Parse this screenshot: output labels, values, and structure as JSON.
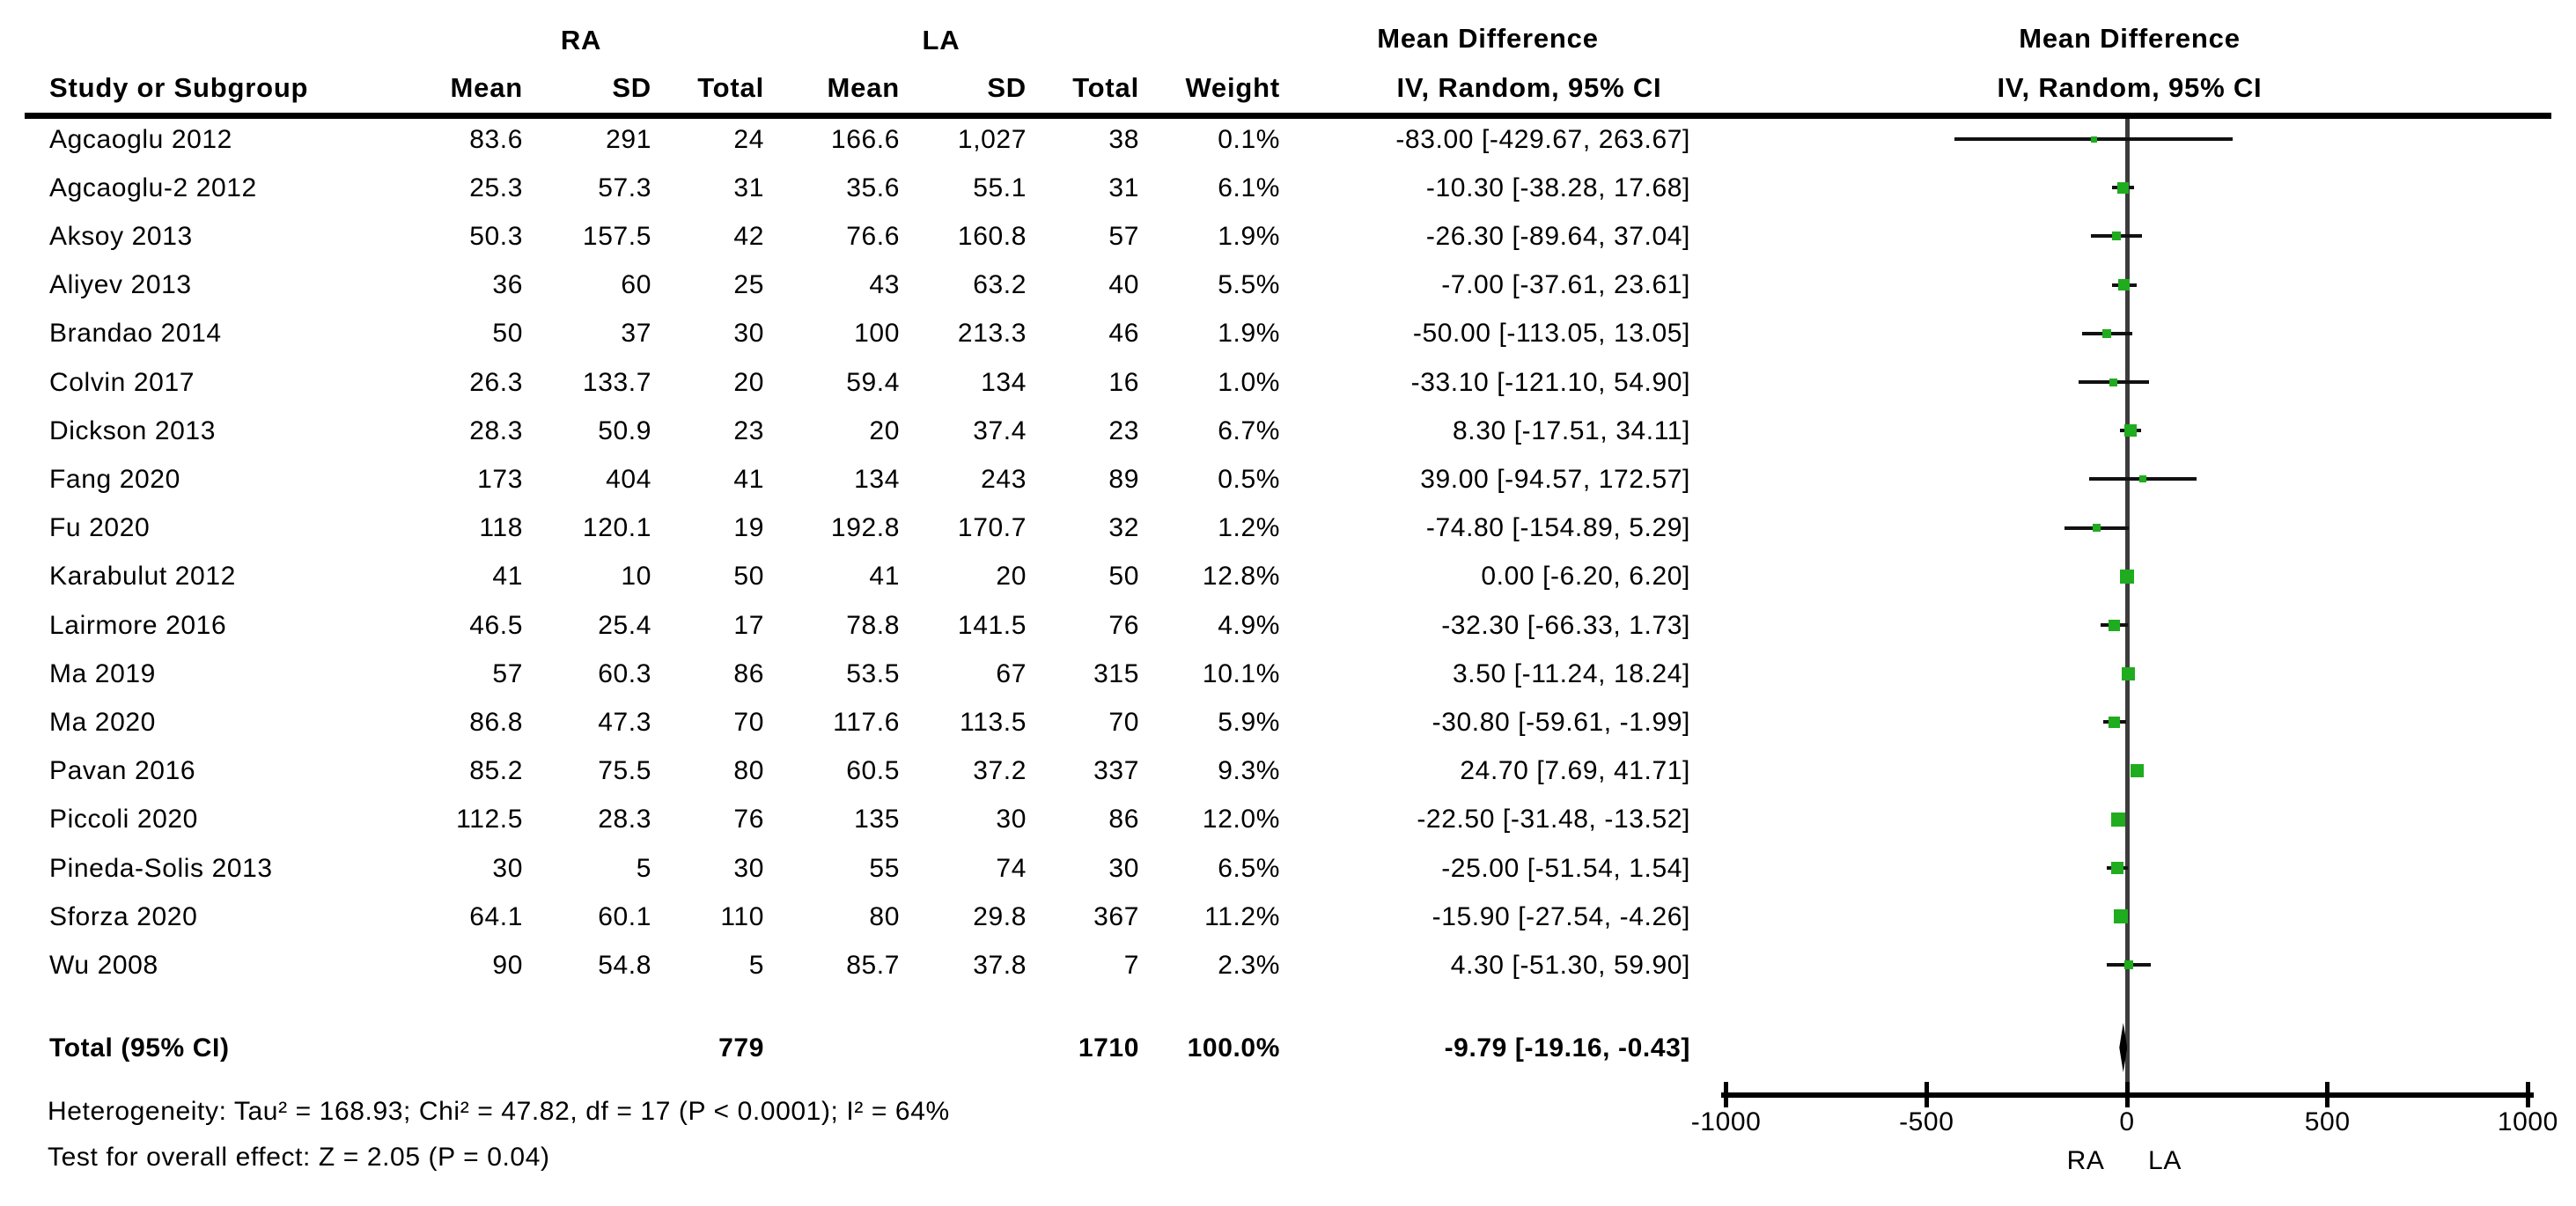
{
  "headers": {
    "study": "Study or Subgroup",
    "mean": "Mean",
    "sd": "SD",
    "total": "Total",
    "weight": "Weight",
    "md_line1": "Mean Difference",
    "md_line2": "IV, Random, 95% CI",
    "group_left": "RA",
    "group_right": "LA"
  },
  "colors": {
    "square_green": "#1fac1f",
    "ci_line": "#111111",
    "zero_line": "#3c3c3c",
    "diamond": "#000000",
    "text": "#000000",
    "background": "#ffffff"
  },
  "chart_data": {
    "type": "forest",
    "effect_measure": "Mean Difference",
    "method": "IV, Random, 95% CI",
    "group_labels": {
      "left": "RA",
      "right": "LA"
    },
    "axis": {
      "ticks": [
        -1000,
        -500,
        0,
        500,
        1000
      ],
      "xlim": [
        -1000,
        1000
      ],
      "below_labels": [
        "RA",
        "LA"
      ],
      "grid": false
    },
    "studies": [
      {
        "name": "Agcaoglu 2012",
        "ra_mean": "83.6",
        "ra_sd": "291",
        "ra_total": "24",
        "la_mean": "166.6",
        "la_sd": "1,027",
        "la_total": "38",
        "weight": "0.1%",
        "ci_text": "-83.00 [-429.67, 263.67]",
        "md": -83.0,
        "lo": -429.67,
        "hi": 263.67
      },
      {
        "name": "Agcaoglu-2 2012",
        "ra_mean": "25.3",
        "ra_sd": "57.3",
        "ra_total": "31",
        "la_mean": "35.6",
        "la_sd": "55.1",
        "la_total": "31",
        "weight": "6.1%",
        "ci_text": "-10.30 [-38.28, 17.68]",
        "md": -10.3,
        "lo": -38.28,
        "hi": 17.68
      },
      {
        "name": "Aksoy 2013",
        "ra_mean": "50.3",
        "ra_sd": "157.5",
        "ra_total": "42",
        "la_mean": "76.6",
        "la_sd": "160.8",
        "la_total": "57",
        "weight": "1.9%",
        "ci_text": "-26.30 [-89.64, 37.04]",
        "md": -26.3,
        "lo": -89.64,
        "hi": 37.04
      },
      {
        "name": "Aliyev 2013",
        "ra_mean": "36",
        "ra_sd": "60",
        "ra_total": "25",
        "la_mean": "43",
        "la_sd": "63.2",
        "la_total": "40",
        "weight": "5.5%",
        "ci_text": "-7.00 [-37.61, 23.61]",
        "md": -7.0,
        "lo": -37.61,
        "hi": 23.61
      },
      {
        "name": "Brandao 2014",
        "ra_mean": "50",
        "ra_sd": "37",
        "ra_total": "30",
        "la_mean": "100",
        "la_sd": "213.3",
        "la_total": "46",
        "weight": "1.9%",
        "ci_text": "-50.00 [-113.05, 13.05]",
        "md": -50.0,
        "lo": -113.05,
        "hi": 13.05
      },
      {
        "name": "Colvin 2017",
        "ra_mean": "26.3",
        "ra_sd": "133.7",
        "ra_total": "20",
        "la_mean": "59.4",
        "la_sd": "134",
        "la_total": "16",
        "weight": "1.0%",
        "ci_text": "-33.10 [-121.10, 54.90]",
        "md": -33.1,
        "lo": -121.1,
        "hi": 54.9
      },
      {
        "name": "Dickson 2013",
        "ra_mean": "28.3",
        "ra_sd": "50.9",
        "ra_total": "23",
        "la_mean": "20",
        "la_sd": "37.4",
        "la_total": "23",
        "weight": "6.7%",
        "ci_text": "8.30 [-17.51, 34.11]",
        "md": 8.3,
        "lo": -17.51,
        "hi": 34.11
      },
      {
        "name": "Fang 2020",
        "ra_mean": "173",
        "ra_sd": "404",
        "ra_total": "41",
        "la_mean": "134",
        "la_sd": "243",
        "la_total": "89",
        "weight": "0.5%",
        "ci_text": "39.00 [-94.57, 172.57]",
        "md": 39.0,
        "lo": -94.57,
        "hi": 172.57
      },
      {
        "name": "Fu 2020",
        "ra_mean": "118",
        "ra_sd": "120.1",
        "ra_total": "19",
        "la_mean": "192.8",
        "la_sd": "170.7",
        "la_total": "32",
        "weight": "1.2%",
        "ci_text": "-74.80 [-154.89, 5.29]",
        "md": -74.8,
        "lo": -154.89,
        "hi": 5.29
      },
      {
        "name": "Karabulut 2012",
        "ra_mean": "41",
        "ra_sd": "10",
        "ra_total": "50",
        "la_mean": "41",
        "la_sd": "20",
        "la_total": "50",
        "weight": "12.8%",
        "ci_text": "0.00 [-6.20, 6.20]",
        "md": 0.0,
        "lo": -6.2,
        "hi": 6.2
      },
      {
        "name": "Lairmore 2016",
        "ra_mean": "46.5",
        "ra_sd": "25.4",
        "ra_total": "17",
        "la_mean": "78.8",
        "la_sd": "141.5",
        "la_total": "76",
        "weight": "4.9%",
        "ci_text": "-32.30 [-66.33, 1.73]",
        "md": -32.3,
        "lo": -66.33,
        "hi": 1.73
      },
      {
        "name": "Ma 2019",
        "ra_mean": "57",
        "ra_sd": "60.3",
        "ra_total": "86",
        "la_mean": "53.5",
        "la_sd": "67",
        "la_total": "315",
        "weight": "10.1%",
        "ci_text": "3.50 [-11.24, 18.24]",
        "md": 3.5,
        "lo": -11.24,
        "hi": 18.24
      },
      {
        "name": "Ma 2020",
        "ra_mean": "86.8",
        "ra_sd": "47.3",
        "ra_total": "70",
        "la_mean": "117.6",
        "la_sd": "113.5",
        "la_total": "70",
        "weight": "5.9%",
        "ci_text": "-30.80 [-59.61, -1.99]",
        "md": -30.8,
        "lo": -59.61,
        "hi": -1.99
      },
      {
        "name": "Pavan 2016",
        "ra_mean": "85.2",
        "ra_sd": "75.5",
        "ra_total": "80",
        "la_mean": "60.5",
        "la_sd": "37.2",
        "la_total": "337",
        "weight": "9.3%",
        "ci_text": "24.70 [7.69, 41.71]",
        "md": 24.7,
        "lo": 7.69,
        "hi": 41.71
      },
      {
        "name": "Piccoli 2020",
        "ra_mean": "112.5",
        "ra_sd": "28.3",
        "ra_total": "76",
        "la_mean": "135",
        "la_sd": "30",
        "la_total": "86",
        "weight": "12.0%",
        "ci_text": "-22.50 [-31.48, -13.52]",
        "md": -22.5,
        "lo": -31.48,
        "hi": -13.52
      },
      {
        "name": "Pineda-Solis 2013",
        "ra_mean": "30",
        "ra_sd": "5",
        "ra_total": "30",
        "la_mean": "55",
        "la_sd": "74",
        "la_total": "30",
        "weight": "6.5%",
        "ci_text": "-25.00 [-51.54, 1.54]",
        "md": -25.0,
        "lo": -51.54,
        "hi": 1.54
      },
      {
        "name": "Sforza 2020",
        "ra_mean": "64.1",
        "ra_sd": "60.1",
        "ra_total": "110",
        "la_mean": "80",
        "la_sd": "29.8",
        "la_total": "367",
        "weight": "11.2%",
        "ci_text": "-15.90 [-27.54, -4.26]",
        "md": -15.9,
        "lo": -27.54,
        "hi": -4.26
      },
      {
        "name": "Wu 2008",
        "ra_mean": "90",
        "ra_sd": "54.8",
        "ra_total": "5",
        "la_mean": "85.7",
        "la_sd": "37.8",
        "la_total": "7",
        "weight": "2.3%",
        "ci_text": "4.30 [-51.30, 59.90]",
        "md": 4.3,
        "lo": -51.3,
        "hi": 59.9
      }
    ],
    "total": {
      "label": "Total (95% CI)",
      "ra_total": "779",
      "la_total": "1710",
      "weight": "100.0%",
      "ci_text": "-9.79 [-19.16, -0.43]",
      "md": -9.79,
      "lo": -19.16,
      "hi": -0.43
    },
    "heterogeneity": "Heterogeneity: Tau² = 168.93; Chi² = 47.82, df = 17 (P < 0.0001); I² = 64%",
    "overall_effect": "Test for overall effect: Z = 2.05 (P = 0.04)"
  }
}
